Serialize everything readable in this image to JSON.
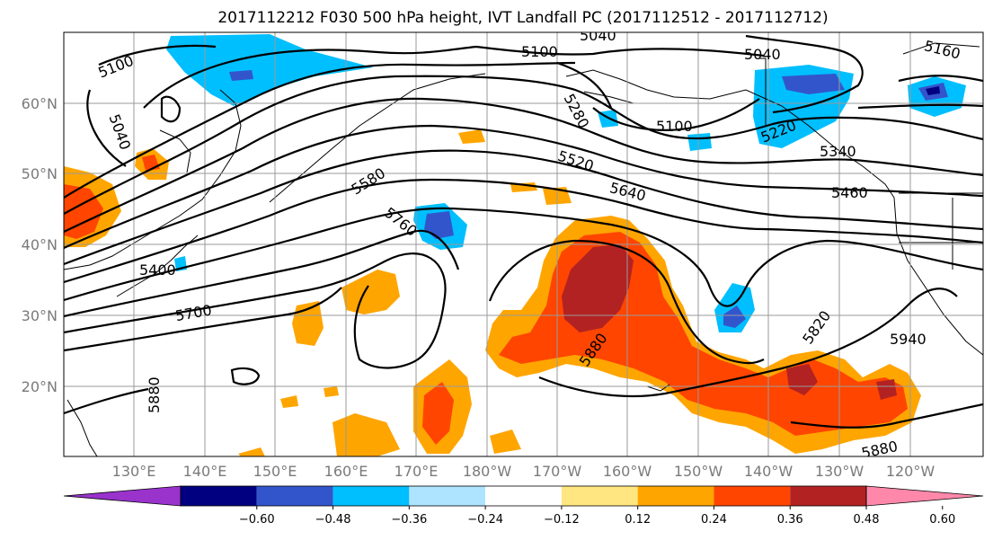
{
  "title": "2017112212 F030 500 hPa height, IVT Landfall PC (2017112512 - 2017112712)",
  "lat_labels": [
    "60°N",
    "50°N",
    "40°N",
    "30°N",
    "20°N"
  ],
  "lon_labels": [
    "130°E",
    "140°E",
    "150°E",
    "160°E",
    "170°E",
    "180°W",
    "170°W",
    "160°W",
    "150°W",
    "140°W",
    "130°W",
    "120°W"
  ],
  "colorbar": {
    "colors": [
      "#9933cc",
      "#000080",
      "#3355cc",
      "#00bfff",
      "#aee4ff",
      "#ffffff",
      "#ffe680",
      "#ffa500",
      "#ff4500",
      "#b22222",
      "#ff88aa"
    ],
    "ticks": [
      "−0.60",
      "−0.48",
      "−0.36",
      "−0.24",
      "−0.12",
      "0.12",
      "0.24",
      "0.36",
      "0.48",
      "0.60"
    ]
  },
  "contour_labels": [
    "5100",
    "5040",
    "5100",
    "5040",
    "5040",
    "5160",
    "5280",
    "5100",
    "5220",
    "5340",
    "5520",
    "5460",
    "5580",
    "5640",
    "5760",
    "5400",
    "5700",
    "5880",
    "5820",
    "5940",
    "5880",
    "5880"
  ]
}
